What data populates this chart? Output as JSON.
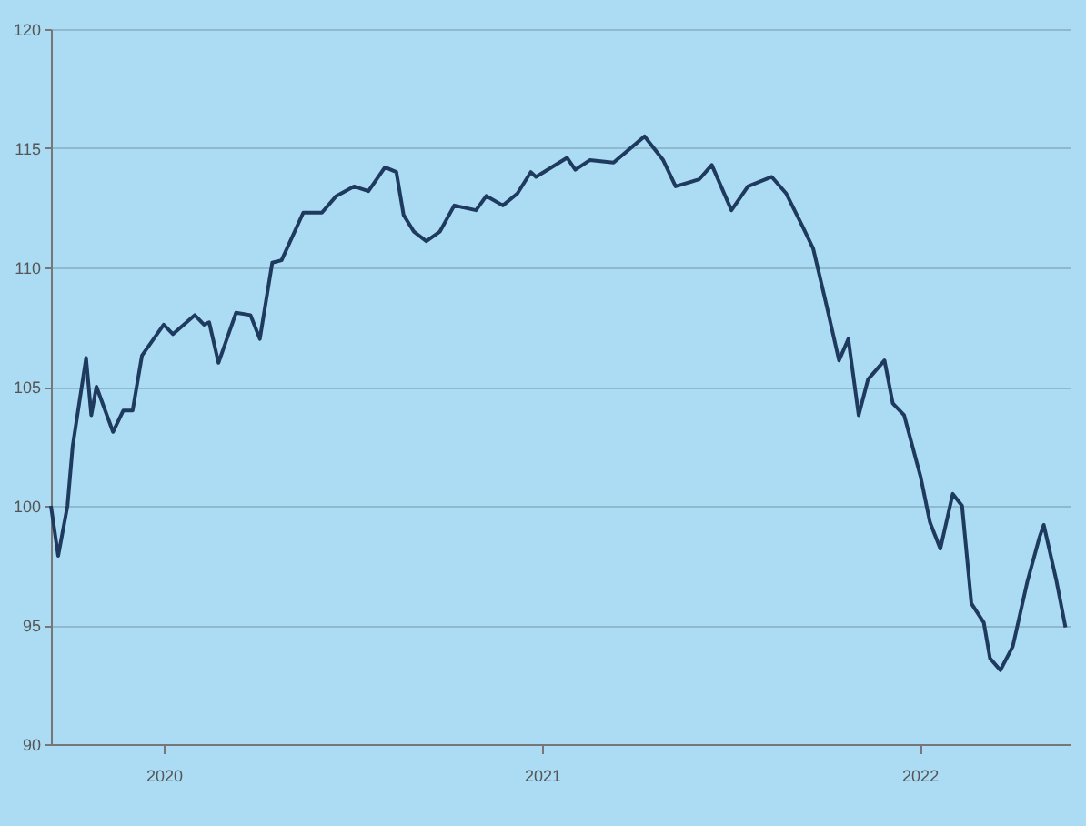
{
  "chart_data": {
    "type": "line",
    "x": [
      "2019-09-14",
      "2019-09-21",
      "2019-09-30",
      "2019-10-05",
      "2019-10-18",
      "2019-10-23",
      "2019-10-28",
      "2019-11-13",
      "2019-11-23",
      "2019-12-02",
      "2019-12-11",
      "2020-01-01",
      "2020-01-10",
      "2020-01-31",
      "2020-02-09",
      "2020-02-14",
      "2020-02-23",
      "2020-03-11",
      "2020-03-25",
      "2020-04-03",
      "2020-04-15",
      "2020-04-24",
      "2020-05-15",
      "2020-06-02",
      "2020-06-16",
      "2020-07-03",
      "2020-07-17",
      "2020-08-02",
      "2020-08-13",
      "2020-08-20",
      "2020-08-30",
      "2020-09-11",
      "2020-09-24",
      "2020-10-08",
      "2020-10-29",
      "2020-11-08",
      "2020-11-24",
      "2020-12-08",
      "2020-12-21",
      "2020-12-26",
      "2021-01-25",
      "2021-02-02",
      "2021-02-16",
      "2021-03-11",
      "2021-04-10",
      "2021-04-28",
      "2021-05-10",
      "2021-06-02",
      "2021-06-14",
      "2021-07-03",
      "2021-07-19",
      "2021-08-11",
      "2021-08-25",
      "2021-09-10",
      "2021-09-20",
      "2021-10-03",
      "2021-10-15",
      "2021-10-24",
      "2021-11-03",
      "2021-11-12",
      "2021-11-28",
      "2021-12-06",
      "2021-12-17",
      "2022-01-02",
      "2022-01-11",
      "2022-01-21",
      "2022-02-02",
      "2022-02-11",
      "2022-02-20",
      "2022-03-04",
      "2022-03-10",
      "2022-03-20",
      "2022-04-01",
      "2022-04-15",
      "2022-04-27",
      "2022-05-01",
      "2022-05-13",
      "2022-05-22"
    ],
    "series": [
      {
        "color": "#1f3a5f",
        "values": [
          100,
          97.9,
          100,
          102.5,
          106.2,
          103.8,
          105,
          103.1,
          104,
          104,
          106.3,
          107.6,
          107.2,
          108,
          107.6,
          107.7,
          106,
          108.1,
          108,
          107,
          110.2,
          110.3,
          112.3,
          112.3,
          113,
          113.4,
          113.2,
          114.2,
          114,
          112.2,
          111.5,
          111.1,
          111.5,
          112.6,
          112.4,
          113,
          112.6,
          113.1,
          114,
          113.8,
          114.6,
          114.1,
          114.5,
          114.4,
          115.5,
          114.5,
          113.4,
          113.7,
          114.3,
          112.4,
          113.4,
          113.8,
          113.1,
          111.7,
          110.8,
          108.4,
          106.1,
          107,
          103.8,
          105.3,
          106.1,
          104.3,
          103.8,
          101.2,
          99.3,
          98.2,
          100.5,
          100,
          95.9,
          95.1,
          93.6,
          93.1,
          94.1,
          96.8,
          98.7,
          99.2,
          96.9,
          94.9
        ]
      }
    ],
    "xlim": [
      "2019-09-14",
      "2022-05-26"
    ],
    "xticks": [
      {
        "value": "2020-01-01",
        "label": "2020"
      },
      {
        "value": "2021-01-01",
        "label": "2021"
      },
      {
        "value": "2022-01-01",
        "label": "2022"
      }
    ],
    "ylim": [
      90,
      120
    ],
    "yticks": [
      90,
      95,
      100,
      105,
      110,
      115,
      120
    ],
    "grid": "y",
    "legend": false,
    "marker": "none",
    "line_style": "solid"
  }
}
